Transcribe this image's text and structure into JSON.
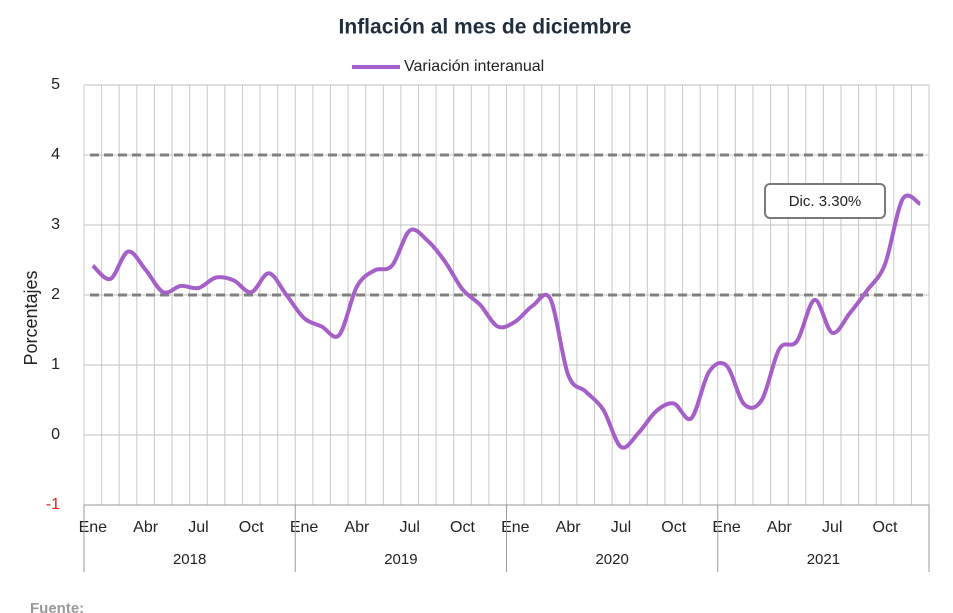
{
  "chart_data": {
    "type": "line",
    "title": "Inflación al mes de diciembre",
    "y_label": "Porcentajes",
    "categories": [
      "Ene",
      null,
      null,
      "Abr",
      null,
      null,
      "Jul",
      null,
      null,
      "Oct",
      null,
      null,
      "Ene",
      null,
      null,
      "Abr",
      null,
      null,
      "Jul",
      null,
      null,
      "Oct",
      null,
      null,
      "Ene",
      null,
      null,
      "Abr",
      null,
      null,
      "Jul",
      null,
      null,
      "Oct",
      null,
      null,
      "Ene",
      null,
      null,
      "Abr",
      null,
      null,
      "Jul",
      null,
      null,
      "Oct",
      null,
      null
    ],
    "year_labels": [
      "2018",
      "2019",
      "2020",
      "2021"
    ],
    "series": [
      {
        "name": "Variación interanual",
        "color": "#a55fc8",
        "values": [
          2.42,
          2.23,
          2.62,
          2.36,
          2.04,
          2.13,
          2.1,
          2.25,
          2.21,
          2.04,
          2.31,
          2.0,
          1.67,
          1.55,
          1.43,
          2.12,
          2.35,
          2.42,
          2.92,
          2.78,
          2.48,
          2.08,
          1.86,
          1.55,
          1.62,
          1.85,
          1.94,
          0.86,
          0.62,
          0.36,
          -0.17,
          0.03,
          0.34,
          0.45,
          0.24,
          0.9,
          0.99,
          0.44,
          0.5,
          1.23,
          1.34,
          1.93,
          1.46,
          1.74,
          2.07,
          2.44,
          3.37,
          3.3
        ]
      }
    ],
    "reference_lines": [
      2,
      4
    ],
    "annotation": "Dic. 3.30%",
    "ylim": [
      -1,
      5
    ],
    "yticks": [
      -1,
      0,
      1,
      2,
      3,
      4,
      5
    ],
    "grid": true,
    "footer": "Fuente:"
  }
}
